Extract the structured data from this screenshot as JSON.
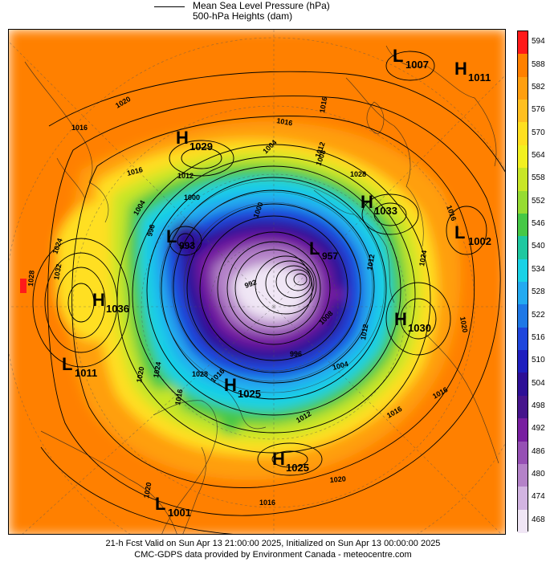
{
  "legend": {
    "line1": "Mean Sea Level Pressure (hPa)",
    "line2": "500-hPa Heights (dam)"
  },
  "colorbar": {
    "levels": [
      "594",
      "588",
      "582",
      "576",
      "570",
      "564",
      "558",
      "552",
      "546",
      "540",
      "534",
      "528",
      "522",
      "516",
      "510",
      "504",
      "498",
      "492",
      "486",
      "480",
      "474",
      "468"
    ],
    "colors": [
      "#ff1a1a",
      "#ff8000",
      "#ff9f10",
      "#ffbf20",
      "#ffdf20",
      "#f2f020",
      "#c8e628",
      "#96dc32",
      "#46c846",
      "#1ec8a0",
      "#19d2e6",
      "#23aaf0",
      "#1e78e6",
      "#1e46dc",
      "#1e1ebe",
      "#2d0f96",
      "#46148c",
      "#781ea0",
      "#9650b4",
      "#b482c8",
      "#d2b4e1",
      "#f0e6f5"
    ]
  },
  "pressure_centers": [
    {
      "type": "L",
      "value": "1007"
    },
    {
      "type": "H",
      "value": "1011"
    },
    {
      "type": "H",
      "value": "1029"
    },
    {
      "type": "H",
      "value": "1033"
    },
    {
      "type": "L",
      "value": "1002"
    },
    {
      "type": "L",
      "value": "993"
    },
    {
      "type": "L",
      "value": "957"
    },
    {
      "type": "H",
      "value": "1036"
    },
    {
      "type": "H",
      "value": "1030"
    },
    {
      "type": "L",
      "value": "1011"
    },
    {
      "type": "H",
      "value": "1025"
    },
    {
      "type": "H",
      "value": "1025"
    },
    {
      "type": "L",
      "value": "1001"
    }
  ],
  "contour_labels": [
    "1020",
    "1016",
    "1016",
    "1016",
    "1012",
    "1000",
    "1004",
    "996",
    "1024",
    "1028",
    "1032",
    "1028",
    "1016",
    "1012",
    "1016",
    "1024",
    "1020",
    "1020",
    "1016",
    "1016",
    "1016",
    "1012",
    "1020",
    "1024",
    "1028",
    "1016",
    "1020",
    "1008",
    "1004",
    "1012",
    "1000",
    "996",
    "992",
    "1004",
    "1012",
    "1008",
    "1016"
  ],
  "footer": {
    "line1": "21-h Fcst Valid on Sun Apr 13 21:00:00 2025, Initialized on Sun Apr 13 00:00:00 2025",
    "line2": "CMC-GDPS data provided by Environment Canada - meteocentre.com"
  }
}
